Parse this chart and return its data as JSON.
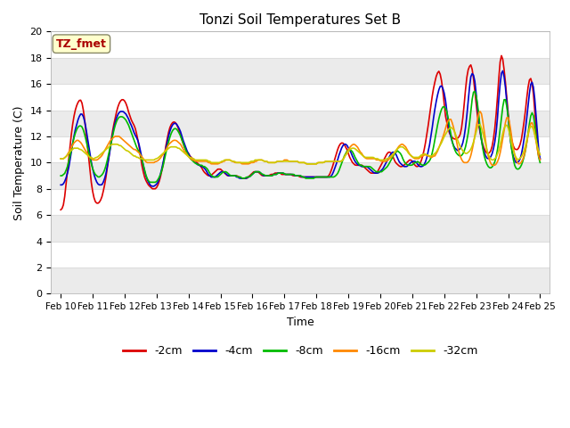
{
  "title": "Tonzi Soil Temperatures Set B",
  "xlabel": "Time",
  "ylabel": "Soil Temperature (C)",
  "ylim": [
    0,
    20
  ],
  "yticks": [
    0,
    2,
    4,
    6,
    8,
    10,
    12,
    14,
    16,
    18,
    20
  ],
  "fig_bg_color": "#ffffff",
  "plot_bg_color": "#ffffff",
  "annotation_text": "TZ_fmet",
  "annotation_bg": "#ffffcc",
  "annotation_border": "#cc0000",
  "grid_color": "#dddddd",
  "series_order": [
    "-2cm",
    "-4cm",
    "-8cm",
    "-16cm",
    "-32cm"
  ],
  "series": {
    "-2cm": {
      "color": "#dd0000",
      "lw": 1.2
    },
    "-4cm": {
      "color": "#0000cc",
      "lw": 1.2
    },
    "-8cm": {
      "color": "#00bb00",
      "lw": 1.2
    },
    "-16cm": {
      "color": "#ff8800",
      "lw": 1.2
    },
    "-32cm": {
      "color": "#cccc00",
      "lw": 1.2
    }
  },
  "x_labels": [
    "Feb 10",
    "Feb 11",
    "Feb 12",
    "Feb 13",
    "Feb 14",
    "Feb 15",
    "Feb 16",
    "Feb 17",
    "Feb 18",
    "Feb 19",
    "Feb 20",
    "Feb 21",
    "Feb 22",
    "Feb 23",
    "Feb 24",
    "Feb 25"
  ],
  "n_points": 361,
  "data_2cm": [
    6.4,
    6.5,
    6.8,
    7.5,
    8.5,
    9.5,
    10.5,
    11.5,
    12.5,
    13.2,
    13.8,
    14.2,
    14.5,
    14.7,
    14.8,
    14.7,
    14.2,
    13.5,
    12.5,
    11.5,
    10.5,
    9.5,
    8.5,
    7.8,
    7.3,
    7.0,
    6.9,
    6.9,
    7.0,
    7.2,
    7.5,
    8.0,
    8.5,
    9.2,
    10.0,
    10.8,
    11.5,
    12.2,
    12.8,
    13.3,
    13.8,
    14.2,
    14.5,
    14.7,
    14.8,
    14.8,
    14.7,
    14.5,
    14.2,
    13.8,
    13.5,
    13.2,
    13.0,
    12.8,
    12.5,
    12.0,
    11.5,
    10.8,
    10.0,
    9.5,
    9.0,
    8.7,
    8.5,
    8.3,
    8.2,
    8.1,
    8.0,
    8.0,
    8.0,
    8.1,
    8.3,
    8.6,
    9.0,
    9.5,
    10.0,
    10.8,
    11.5,
    12.0,
    12.5,
    12.8,
    13.0,
    13.1,
    13.1,
    13.0,
    12.8,
    12.5,
    12.2,
    11.8,
    11.5,
    11.2,
    11.0,
    10.8,
    10.7,
    10.5,
    10.4,
    10.3,
    10.2,
    10.1,
    10.0,
    9.9,
    9.8,
    9.7,
    9.5,
    9.3,
    9.2,
    9.1,
    9.0,
    9.0,
    9.0,
    9.1,
    9.2,
    9.3,
    9.4,
    9.5,
    9.5,
    9.5,
    9.4,
    9.3,
    9.2,
    9.1,
    9.0,
    9.0,
    9.0,
    9.0,
    9.0,
    9.0,
    9.0,
    9.0,
    8.9,
    8.9,
    8.8,
    8.8,
    8.8,
    8.8,
    8.8,
    8.9,
    9.0,
    9.1,
    9.2,
    9.3,
    9.3,
    9.3,
    9.3,
    9.2,
    9.1,
    9.0,
    9.0,
    9.0,
    9.0,
    9.0,
    9.0,
    9.1,
    9.1,
    9.1,
    9.2,
    9.2,
    9.2,
    9.2,
    9.2,
    9.1,
    9.1,
    9.1,
    9.1,
    9.1,
    9.1,
    9.1,
    9.1,
    9.0,
    9.0,
    9.0,
    9.0,
    9.0,
    8.9,
    8.9,
    8.9,
    8.9,
    8.9,
    8.9,
    8.9,
    8.9,
    8.9,
    8.9,
    8.9,
    8.9,
    8.9,
    8.9,
    8.9,
    8.9,
    8.9,
    8.9,
    8.9,
    8.9,
    8.9,
    9.0,
    9.2,
    9.5,
    9.8,
    10.2,
    10.5,
    10.9,
    11.2,
    11.4,
    11.5,
    11.5,
    11.4,
    11.2,
    11.0,
    10.7,
    10.4,
    10.2,
    10.0,
    9.9,
    9.8,
    9.8,
    9.8,
    9.8,
    9.8,
    9.8,
    9.7,
    9.6,
    9.5,
    9.4,
    9.3,
    9.2,
    9.2,
    9.2,
    9.2,
    9.2,
    9.3,
    9.5,
    9.7,
    9.9,
    10.1,
    10.3,
    10.5,
    10.7,
    10.8,
    10.8,
    10.7,
    10.5,
    10.2,
    10.0,
    9.9,
    9.8,
    9.7,
    9.7,
    9.7,
    9.8,
    9.9,
    10.0,
    10.1,
    10.2,
    10.2,
    10.1,
    9.9,
    9.8,
    9.7,
    9.7,
    9.8,
    10.0,
    10.3,
    10.7,
    11.2,
    11.8,
    12.5,
    13.2,
    14.0,
    14.8,
    15.5,
    16.0,
    16.5,
    16.8,
    17.0,
    16.8,
    16.3,
    15.5,
    14.5,
    13.5,
    13.0,
    12.5,
    12.2,
    12.0,
    11.9,
    11.8,
    11.8,
    11.8,
    11.9,
    12.0,
    12.3,
    13.0,
    14.0,
    15.2,
    16.3,
    17.0,
    17.3,
    17.5,
    17.2,
    16.5,
    15.5,
    14.5,
    13.5,
    12.8,
    12.2,
    11.7,
    11.3,
    11.0,
    10.8,
    10.7,
    10.7,
    10.8,
    11.0,
    11.5,
    12.2,
    13.2,
    14.5,
    16.0,
    17.5,
    18.2,
    18.0,
    17.2,
    16.2,
    15.0,
    13.8,
    12.8,
    12.0,
    11.5,
    11.2,
    11.0,
    11.0,
    11.0,
    11.2,
    11.5,
    12.0,
    12.8,
    13.5,
    14.5,
    15.5,
    16.2,
    16.5,
    16.2,
    15.5,
    14.2,
    12.8,
    11.5,
    10.5,
    10.3
  ],
  "data_4cm": [
    8.3,
    8.3,
    8.4,
    8.6,
    8.9,
    9.3,
    9.8,
    10.5,
    11.2,
    11.8,
    12.4,
    12.8,
    13.2,
    13.5,
    13.7,
    13.7,
    13.5,
    13.1,
    12.5,
    11.8,
    11.1,
    10.4,
    9.8,
    9.3,
    8.9,
    8.6,
    8.4,
    8.3,
    8.3,
    8.3,
    8.5,
    8.8,
    9.2,
    9.8,
    10.4,
    11.1,
    11.8,
    12.4,
    12.9,
    13.3,
    13.6,
    13.8,
    13.9,
    13.9,
    13.9,
    13.8,
    13.7,
    13.5,
    13.3,
    13.0,
    12.8,
    12.5,
    12.2,
    12.0,
    11.8,
    11.5,
    11.0,
    10.5,
    9.9,
    9.4,
    9.0,
    8.7,
    8.5,
    8.3,
    8.2,
    8.2,
    8.2,
    8.3,
    8.4,
    8.6,
    9.0,
    9.4,
    9.9,
    10.4,
    11.0,
    11.5,
    12.0,
    12.4,
    12.7,
    12.9,
    13.0,
    13.0,
    12.9,
    12.7,
    12.5,
    12.2,
    11.8,
    11.5,
    11.2,
    10.9,
    10.7,
    10.5,
    10.3,
    10.2,
    10.1,
    10.0,
    9.9,
    9.8,
    9.8,
    9.7,
    9.7,
    9.6,
    9.5,
    9.3,
    9.1,
    9.0,
    8.9,
    8.9,
    8.9,
    8.9,
    9.0,
    9.1,
    9.2,
    9.3,
    9.3,
    9.3,
    9.2,
    9.1,
    9.0,
    9.0,
    9.0,
    9.0,
    9.0,
    9.0,
    8.9,
    8.9,
    8.8,
    8.8,
    8.8,
    8.8,
    8.8,
    8.8,
    8.9,
    8.9,
    9.0,
    9.1,
    9.2,
    9.3,
    9.3,
    9.3,
    9.3,
    9.2,
    9.1,
    9.0,
    9.0,
    9.0,
    9.0,
    9.0,
    9.0,
    9.0,
    9.1,
    9.1,
    9.1,
    9.2,
    9.2,
    9.2,
    9.2,
    9.2,
    9.1,
    9.1,
    9.1,
    9.1,
    9.1,
    9.1,
    9.1,
    9.0,
    9.0,
    9.0,
    9.0,
    9.0,
    8.9,
    8.9,
    8.9,
    8.9,
    8.9,
    8.9,
    8.9,
    8.9,
    8.9,
    8.9,
    8.9,
    8.9,
    8.9,
    8.9,
    8.9,
    8.9,
    8.9,
    8.9,
    8.9,
    8.9,
    8.9,
    9.0,
    9.2,
    9.5,
    9.8,
    10.1,
    10.5,
    10.8,
    11.1,
    11.3,
    11.4,
    11.4,
    11.3,
    11.1,
    10.9,
    10.7,
    10.4,
    10.2,
    10.0,
    9.9,
    9.8,
    9.8,
    9.7,
    9.7,
    9.7,
    9.7,
    9.7,
    9.6,
    9.5,
    9.4,
    9.3,
    9.2,
    9.2,
    9.2,
    9.2,
    9.3,
    9.4,
    9.5,
    9.7,
    9.9,
    10.1,
    10.3,
    10.5,
    10.7,
    10.8,
    10.8,
    10.7,
    10.5,
    10.2,
    10.0,
    9.9,
    9.8,
    9.7,
    9.7,
    9.7,
    9.8,
    9.9,
    10.0,
    10.1,
    10.1,
    10.1,
    10.0,
    9.8,
    9.7,
    9.7,
    9.7,
    9.8,
    10.0,
    10.3,
    10.8,
    11.3,
    12.0,
    12.7,
    13.5,
    14.2,
    14.8,
    15.3,
    15.7,
    15.9,
    15.8,
    15.5,
    15.0,
    14.2,
    13.2,
    12.5,
    12.0,
    11.6,
    11.3,
    11.1,
    11.0,
    10.9,
    11.0,
    11.1,
    11.3,
    11.7,
    12.3,
    13.2,
    14.3,
    15.5,
    16.5,
    16.8,
    16.7,
    16.2,
    15.2,
    14.0,
    13.0,
    12.2,
    11.5,
    11.0,
    10.7,
    10.4,
    10.3,
    10.3,
    10.4,
    10.6,
    11.0,
    11.5,
    12.3,
    13.5,
    15.0,
    16.2,
    17.0,
    17.0,
    16.3,
    15.3,
    14.0,
    12.8,
    11.8,
    11.0,
    10.5,
    10.2,
    10.0,
    10.0,
    10.1,
    10.3,
    10.7,
    11.3,
    12.0,
    12.8,
    13.8,
    14.8,
    15.8,
    16.2,
    16.0,
    15.2,
    13.8,
    12.3,
    11.0,
    10.3
  ],
  "data_8cm": [
    9.0,
    9.0,
    9.1,
    9.2,
    9.5,
    9.8,
    10.3,
    10.8,
    11.3,
    11.8,
    12.2,
    12.5,
    12.7,
    12.8,
    12.8,
    12.7,
    12.4,
    12.0,
    11.5,
    11.0,
    10.5,
    10.0,
    9.6,
    9.3,
    9.1,
    9.0,
    8.9,
    8.9,
    9.0,
    9.1,
    9.3,
    9.6,
    10.0,
    10.5,
    11.0,
    11.5,
    12.0,
    12.5,
    12.9,
    13.2,
    13.4,
    13.5,
    13.5,
    13.5,
    13.4,
    13.3,
    13.1,
    12.9,
    12.6,
    12.3,
    12.0,
    11.7,
    11.4,
    11.1,
    10.9,
    10.7,
    10.4,
    10.0,
    9.5,
    9.1,
    8.8,
    8.6,
    8.5,
    8.5,
    8.5,
    8.5,
    8.5,
    8.6,
    8.8,
    9.0,
    9.3,
    9.7,
    10.2,
    10.7,
    11.2,
    11.6,
    12.0,
    12.3,
    12.5,
    12.6,
    12.6,
    12.5,
    12.3,
    12.1,
    11.8,
    11.5,
    11.2,
    10.9,
    10.7,
    10.5,
    10.3,
    10.2,
    10.1,
    10.0,
    9.9,
    9.9,
    9.8,
    9.8,
    9.8,
    9.7,
    9.7,
    9.6,
    9.5,
    9.3,
    9.1,
    9.0,
    8.9,
    8.9,
    8.9,
    8.9,
    9.0,
    9.1,
    9.2,
    9.3,
    9.3,
    9.3,
    9.2,
    9.1,
    9.0,
    9.0,
    9.0,
    9.0,
    9.0,
    8.9,
    8.9,
    8.9,
    8.8,
    8.8,
    8.8,
    8.9,
    8.9,
    8.9,
    9.0,
    9.1,
    9.2,
    9.3,
    9.3,
    9.3,
    9.3,
    9.2,
    9.1,
    9.1,
    9.0,
    9.0,
    9.0,
    9.0,
    9.0,
    9.0,
    9.1,
    9.1,
    9.1,
    9.2,
    9.2,
    9.2,
    9.2,
    9.2,
    9.1,
    9.1,
    9.1,
    9.1,
    9.1,
    9.1,
    9.1,
    9.0,
    9.0,
    9.0,
    9.0,
    9.0,
    8.9,
    8.9,
    8.8,
    8.8,
    8.8,
    8.8,
    8.8,
    8.8,
    8.8,
    8.9,
    8.9,
    8.9,
    8.9,
    8.9,
    8.9,
    8.9,
    8.9,
    8.9,
    8.9,
    8.9,
    8.9,
    8.9,
    8.9,
    9.0,
    9.1,
    9.3,
    9.6,
    9.9,
    10.2,
    10.5,
    10.7,
    10.9,
    11.0,
    11.0,
    10.9,
    10.8,
    10.5,
    10.3,
    10.1,
    9.9,
    9.8,
    9.8,
    9.7,
    9.7,
    9.7,
    9.7,
    9.7,
    9.7,
    9.6,
    9.5,
    9.4,
    9.3,
    9.3,
    9.3,
    9.3,
    9.3,
    9.4,
    9.5,
    9.6,
    9.7,
    9.9,
    10.1,
    10.3,
    10.5,
    10.7,
    10.8,
    10.9,
    10.8,
    10.7,
    10.5,
    10.2,
    10.0,
    9.9,
    9.8,
    9.8,
    9.8,
    9.8,
    9.9,
    10.0,
    10.0,
    10.1,
    10.0,
    9.9,
    9.8,
    9.8,
    9.8,
    9.9,
    10.0,
    10.1,
    10.3,
    10.7,
    11.2,
    11.8,
    12.4,
    13.0,
    13.5,
    13.9,
    14.2,
    14.3,
    14.2,
    14.0,
    13.5,
    12.8,
    12.2,
    11.6,
    11.2,
    10.9,
    10.7,
    10.6,
    10.5,
    10.5,
    10.6,
    10.8,
    11.1,
    11.6,
    12.2,
    13.0,
    14.0,
    15.0,
    15.5,
    15.4,
    14.9,
    14.1,
    13.0,
    12.0,
    11.2,
    10.6,
    10.2,
    9.9,
    9.7,
    9.6,
    9.6,
    9.7,
    9.9,
    10.2,
    10.7,
    11.4,
    12.3,
    13.3,
    14.2,
    14.8,
    14.8,
    14.2,
    13.3,
    12.2,
    11.2,
    10.5,
    9.9,
    9.6,
    9.5,
    9.5,
    9.6,
    9.8,
    10.1,
    10.5,
    11.0,
    11.7,
    12.5,
    13.3,
    13.8,
    13.8,
    13.2,
    12.2,
    11.2,
    10.4,
    10.0
  ],
  "data_16cm": [
    10.3,
    10.3,
    10.3,
    10.4,
    10.5,
    10.7,
    10.9,
    11.1,
    11.3,
    11.5,
    11.6,
    11.7,
    11.7,
    11.6,
    11.5,
    11.3,
    11.1,
    10.9,
    10.7,
    10.5,
    10.4,
    10.3,
    10.2,
    10.2,
    10.2,
    10.2,
    10.3,
    10.4,
    10.5,
    10.7,
    10.9,
    11.1,
    11.3,
    11.5,
    11.7,
    11.8,
    11.9,
    12.0,
    12.0,
    12.0,
    12.0,
    11.9,
    11.8,
    11.7,
    11.6,
    11.5,
    11.4,
    11.3,
    11.2,
    11.1,
    11.0,
    11.0,
    10.9,
    10.8,
    10.7,
    10.5,
    10.4,
    10.2,
    10.1,
    10.0,
    10.0,
    10.0,
    10.0,
    10.0,
    10.0,
    10.1,
    10.1,
    10.2,
    10.3,
    10.5,
    10.6,
    10.8,
    11.0,
    11.2,
    11.4,
    11.5,
    11.6,
    11.7,
    11.7,
    11.7,
    11.6,
    11.5,
    11.4,
    11.2,
    11.0,
    10.8,
    10.7,
    10.5,
    10.4,
    10.3,
    10.2,
    10.2,
    10.1,
    10.1,
    10.1,
    10.1,
    10.1,
    10.1,
    10.1,
    10.1,
    10.1,
    10.0,
    10.0,
    9.9,
    9.9,
    9.9,
    9.9,
    9.9,
    9.9,
    10.0,
    10.0,
    10.1,
    10.1,
    10.2,
    10.2,
    10.2,
    10.2,
    10.1,
    10.1,
    10.0,
    10.0,
    10.0,
    10.0,
    10.0,
    9.9,
    9.9,
    9.9,
    9.9,
    9.9,
    9.9,
    10.0,
    10.0,
    10.0,
    10.1,
    10.1,
    10.2,
    10.2,
    10.2,
    10.2,
    10.1,
    10.1,
    10.1,
    10.0,
    10.0,
    10.0,
    10.0,
    10.0,
    10.0,
    10.1,
    10.1,
    10.1,
    10.1,
    10.1,
    10.2,
    10.2,
    10.2,
    10.1,
    10.1,
    10.1,
    10.1,
    10.1,
    10.1,
    10.1,
    10.0,
    10.0,
    10.0,
    10.0,
    10.0,
    9.9,
    9.9,
    9.9,
    9.9,
    9.9,
    9.9,
    9.9,
    9.9,
    10.0,
    10.0,
    10.0,
    10.0,
    10.0,
    10.1,
    10.1,
    10.1,
    10.1,
    10.1,
    10.1,
    10.1,
    10.1,
    10.1,
    10.1,
    10.1,
    10.1,
    10.2,
    10.4,
    10.6,
    10.8,
    11.0,
    11.2,
    11.3,
    11.4,
    11.4,
    11.3,
    11.2,
    11.0,
    10.8,
    10.7,
    10.5,
    10.4,
    10.3,
    10.3,
    10.3,
    10.3,
    10.3,
    10.3,
    10.3,
    10.2,
    10.2,
    10.2,
    10.1,
    10.1,
    10.1,
    10.1,
    10.1,
    10.2,
    10.3,
    10.4,
    10.5,
    10.7,
    10.8,
    11.0,
    11.2,
    11.3,
    11.4,
    11.4,
    11.3,
    11.2,
    11.0,
    10.8,
    10.6,
    10.5,
    10.4,
    10.3,
    10.3,
    10.3,
    10.3,
    10.4,
    10.5,
    10.5,
    10.6,
    10.6,
    10.5,
    10.5,
    10.4,
    10.4,
    10.5,
    10.5,
    10.7,
    10.9,
    11.2,
    11.5,
    11.8,
    12.1,
    12.5,
    12.9,
    13.2,
    13.3,
    13.3,
    13.0,
    12.6,
    12.1,
    11.5,
    11.0,
    10.6,
    10.3,
    10.1,
    10.0,
    10.0,
    10.0,
    10.1,
    10.3,
    10.7,
    11.2,
    11.8,
    12.5,
    13.2,
    13.8,
    13.9,
    13.7,
    13.0,
    12.2,
    11.4,
    10.7,
    10.3,
    10.0,
    9.8,
    9.8,
    9.8,
    9.9,
    10.1,
    10.4,
    10.9,
    11.5,
    12.2,
    12.9,
    13.4,
    13.5,
    13.1,
    12.4,
    11.6,
    10.9,
    10.4,
    10.1,
    9.9,
    9.9,
    10.0,
    10.2,
    10.5,
    11.0,
    11.6,
    12.2,
    12.8,
    13.1,
    13.0,
    12.5,
    11.8,
    11.1,
    10.5,
    10.2
  ],
  "data_32cm": [
    10.3,
    10.3,
    10.3,
    10.4,
    10.5,
    10.6,
    10.8,
    10.9,
    11.0,
    11.1,
    11.1,
    11.1,
    11.1,
    11.0,
    11.0,
    10.9,
    10.8,
    10.7,
    10.6,
    10.5,
    10.4,
    10.4,
    10.3,
    10.3,
    10.4,
    10.4,
    10.5,
    10.6,
    10.7,
    10.8,
    10.9,
    11.0,
    11.1,
    11.2,
    11.3,
    11.4,
    11.4,
    11.4,
    11.4,
    11.4,
    11.3,
    11.3,
    11.2,
    11.1,
    11.0,
    10.9,
    10.9,
    10.8,
    10.7,
    10.6,
    10.5,
    10.5,
    10.4,
    10.4,
    10.3,
    10.3,
    10.3,
    10.2,
    10.2,
    10.2,
    10.2,
    10.2,
    10.2,
    10.2,
    10.2,
    10.3,
    10.3,
    10.4,
    10.5,
    10.6,
    10.7,
    10.8,
    10.9,
    11.0,
    11.1,
    11.2,
    11.2,
    11.2,
    11.2,
    11.2,
    11.1,
    11.1,
    11.0,
    10.9,
    10.8,
    10.7,
    10.6,
    10.5,
    10.4,
    10.4,
    10.3,
    10.3,
    10.2,
    10.2,
    10.2,
    10.2,
    10.2,
    10.2,
    10.2,
    10.2,
    10.2,
    10.1,
    10.1,
    10.0,
    10.0,
    10.0,
    10.0,
    10.0,
    10.0,
    10.0,
    10.1,
    10.1,
    10.2,
    10.2,
    10.2,
    10.2,
    10.2,
    10.1,
    10.1,
    10.1,
    10.0,
    10.0,
    10.0,
    10.0,
    10.0,
    10.0,
    10.0,
    10.0,
    10.0,
    10.0,
    10.1,
    10.1,
    10.1,
    10.2,
    10.2,
    10.2,
    10.2,
    10.2,
    10.2,
    10.1,
    10.1,
    10.1,
    10.0,
    10.0,
    10.0,
    10.0,
    10.0,
    10.0,
    10.1,
    10.1,
    10.1,
    10.1,
    10.1,
    10.1,
    10.1,
    10.1,
    10.1,
    10.1,
    10.1,
    10.1,
    10.1,
    10.1,
    10.1,
    10.0,
    10.0,
    10.0,
    10.0,
    10.0,
    9.9,
    9.9,
    9.9,
    9.9,
    9.9,
    9.9,
    9.9,
    9.9,
    10.0,
    10.0,
    10.0,
    10.0,
    10.0,
    10.1,
    10.1,
    10.1,
    10.1,
    10.1,
    10.1,
    10.1,
    10.1,
    10.1,
    10.1,
    10.1,
    10.1,
    10.2,
    10.4,
    10.6,
    10.7,
    10.9,
    11.0,
    11.1,
    11.1,
    11.1,
    11.0,
    10.9,
    10.8,
    10.7,
    10.6,
    10.5,
    10.4,
    10.4,
    10.4,
    10.4,
    10.4,
    10.4,
    10.4,
    10.3,
    10.3,
    10.3,
    10.2,
    10.2,
    10.2,
    10.2,
    10.2,
    10.3,
    10.3,
    10.4,
    10.5,
    10.6,
    10.7,
    10.9,
    11.0,
    11.1,
    11.2,
    11.2,
    11.2,
    11.1,
    11.0,
    10.9,
    10.7,
    10.6,
    10.5,
    10.4,
    10.4,
    10.4,
    10.4,
    10.4,
    10.5,
    10.6,
    10.6,
    10.7,
    10.6,
    10.6,
    10.5,
    10.5,
    10.5,
    10.6,
    10.7,
    10.8,
    11.0,
    11.2,
    11.4,
    11.6,
    11.9,
    12.1,
    12.3,
    12.5,
    12.6,
    12.7,
    12.6,
    12.5,
    12.2,
    11.9,
    11.6,
    11.3,
    11.1,
    10.9,
    10.8,
    10.7,
    10.7,
    10.8,
    10.9,
    11.1,
    11.4,
    11.8,
    12.2,
    12.7,
    12.9,
    12.9,
    12.6,
    12.2,
    11.7,
    11.2,
    10.8,
    10.5,
    10.3,
    10.2,
    10.2,
    10.3,
    10.4,
    10.7,
    11.0,
    11.5,
    12.0,
    12.5,
    12.8,
    12.9,
    12.7,
    12.3,
    11.7,
    11.2,
    10.8,
    10.5,
    10.3,
    10.2,
    10.3,
    10.4,
    10.6,
    10.9,
    11.3,
    11.8,
    12.3,
    12.7,
    12.8,
    12.7,
    12.3,
    11.8,
    11.3,
    10.9,
    10.6
  ]
}
